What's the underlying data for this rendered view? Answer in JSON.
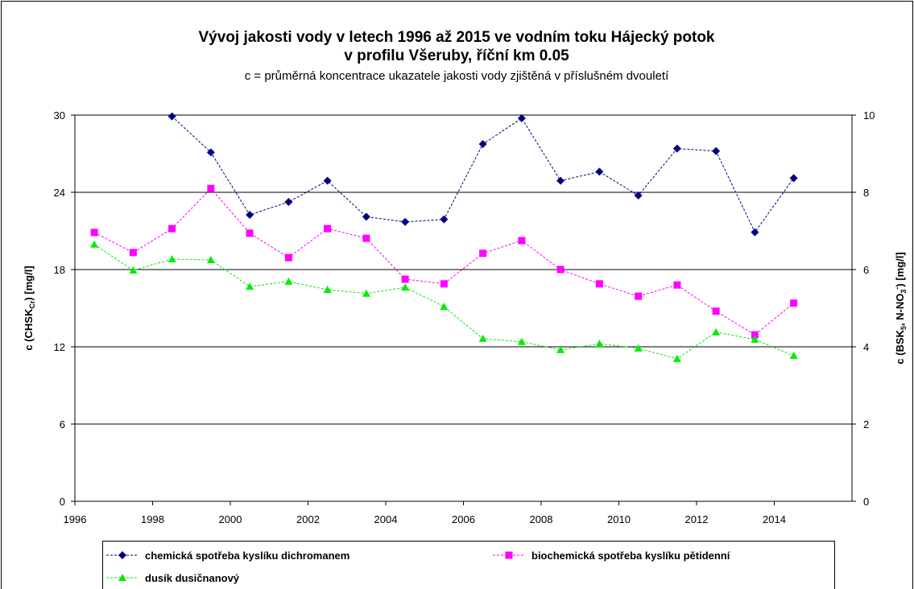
{
  "chart_data": {
    "type": "line",
    "title": [
      "Vývoj jakosti vody v letech 1996 až 2015 ve vodním toku Hájecký potok",
      "v profilu Všeruby, říční km 0.05"
    ],
    "subtitle": "c = průměrná koncentrace ukazatele jakosti vody zjištěná v příslušném dvouletí",
    "y_label": [
      "c (CHSK",
      "Cr",
      ") [mg/l]"
    ],
    "y2_label": [
      "c (BSK",
      "5",
      ", N-NO",
      "3",
      "-",
      ") [mg/l]"
    ],
    "x": [
      1996.5,
      1997.5,
      1998.5,
      1999.5,
      2000.5,
      2001.5,
      2002.5,
      2003.5,
      2004.5,
      2005.5,
      2006.5,
      2007.5,
      2008.5,
      2009.5,
      2010.5,
      2011.5,
      2012.5,
      2013.5,
      2014.5
    ],
    "xlim": [
      1996,
      2016
    ],
    "xticks": [
      1996,
      1998,
      2000,
      2002,
      2004,
      2006,
      2008,
      2010,
      2012,
      2014
    ],
    "ylim": [
      0,
      30
    ],
    "yticks": [
      0,
      6,
      12,
      18,
      24,
      30
    ],
    "y2lim": [
      0,
      10
    ],
    "y2ticks": [
      0,
      2,
      4,
      6,
      8,
      10
    ],
    "grid": true,
    "legend": "bottom",
    "series": [
      {
        "name": "chemická spotřeba kyslíku dichromanem",
        "color": "#000080",
        "marker": "diamond",
        "values": [
          null,
          null,
          29.9,
          27.1,
          22.25,
          23.25,
          24.9,
          22.1,
          21.7,
          21.9,
          27.75,
          29.75,
          24.9,
          25.6,
          23.75,
          27.4,
          27.2,
          20.9,
          25.1
        ]
      },
      {
        "name": "biochemická spotřeba kyslíku pětidenní",
        "color": "#ff00ff",
        "marker": "square",
        "axis": "y2",
        "values": [
          6.96,
          6.44,
          7.06,
          8.1,
          6.94,
          6.31,
          7.06,
          6.81,
          5.75,
          5.63,
          6.42,
          6.75,
          6.0,
          5.63,
          5.31,
          5.6,
          4.92,
          4.31,
          5.13
        ]
      },
      {
        "name": "dusík dusičnanový",
        "color": "#00ee00",
        "marker": "triangle",
        "axis": "y2",
        "values": [
          6.65,
          5.98,
          6.27,
          6.25,
          5.56,
          5.69,
          5.48,
          5.38,
          5.54,
          5.04,
          4.21,
          4.13,
          3.92,
          4.08,
          3.96,
          3.69,
          4.38,
          4.19,
          3.77
        ]
      }
    ]
  }
}
